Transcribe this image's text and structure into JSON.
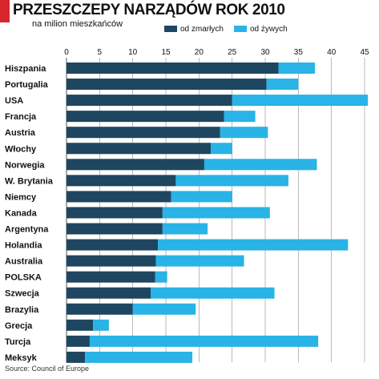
{
  "header": {
    "title": "PRZESZCZEPY NARZĄDÓW ROK 2010",
    "subtitle": "na milion mieszkańców"
  },
  "footer": {
    "source": "Source: Council of Europe"
  },
  "colors": {
    "accent": "#d7262e",
    "dark": "#1e4660",
    "light": "#29b3e6",
    "grid": "#9a9a9a"
  },
  "chart_data": {
    "type": "bar",
    "orientation": "horizontal",
    "stacked": true,
    "title": "PRZESZCZEPY NARZĄDÓW ROK 2010",
    "subtitle": "na milion mieszkańców",
    "xlim": [
      0,
      45
    ],
    "xticks": [
      0,
      5,
      10,
      15,
      20,
      25,
      30,
      35,
      40,
      45
    ],
    "grid": true,
    "legend_position": "top-right",
    "categories": [
      "Hiszpania",
      "Portugalia",
      "USA",
      "Francja",
      "Austria",
      "Włochy",
      "Norwegia",
      "W. Brytania",
      "Niemcy",
      "Kanada",
      "Argentyna",
      "Holandia",
      "Australia",
      "POLSKA",
      "Szwecja",
      "Brazylia",
      "Grecja",
      "Turcja",
      "Meksyk"
    ],
    "series": [
      {
        "name": "od zmarłych",
        "color": "#1e4660",
        "values": [
          32.0,
          30.2,
          25.0,
          23.8,
          23.2,
          21.8,
          20.8,
          16.5,
          15.8,
          14.5,
          14.5,
          13.8,
          13.5,
          13.4,
          12.7,
          10.0,
          4.0,
          3.5,
          2.8
        ]
      },
      {
        "name": "od żywych",
        "color": "#29b3e6",
        "values": [
          5.5,
          4.8,
          20.5,
          4.7,
          7.2,
          3.2,
          17.0,
          17.0,
          9.2,
          16.2,
          6.8,
          28.7,
          13.3,
          1.8,
          18.7,
          9.5,
          2.4,
          34.5,
          16.2
        ]
      }
    ]
  }
}
